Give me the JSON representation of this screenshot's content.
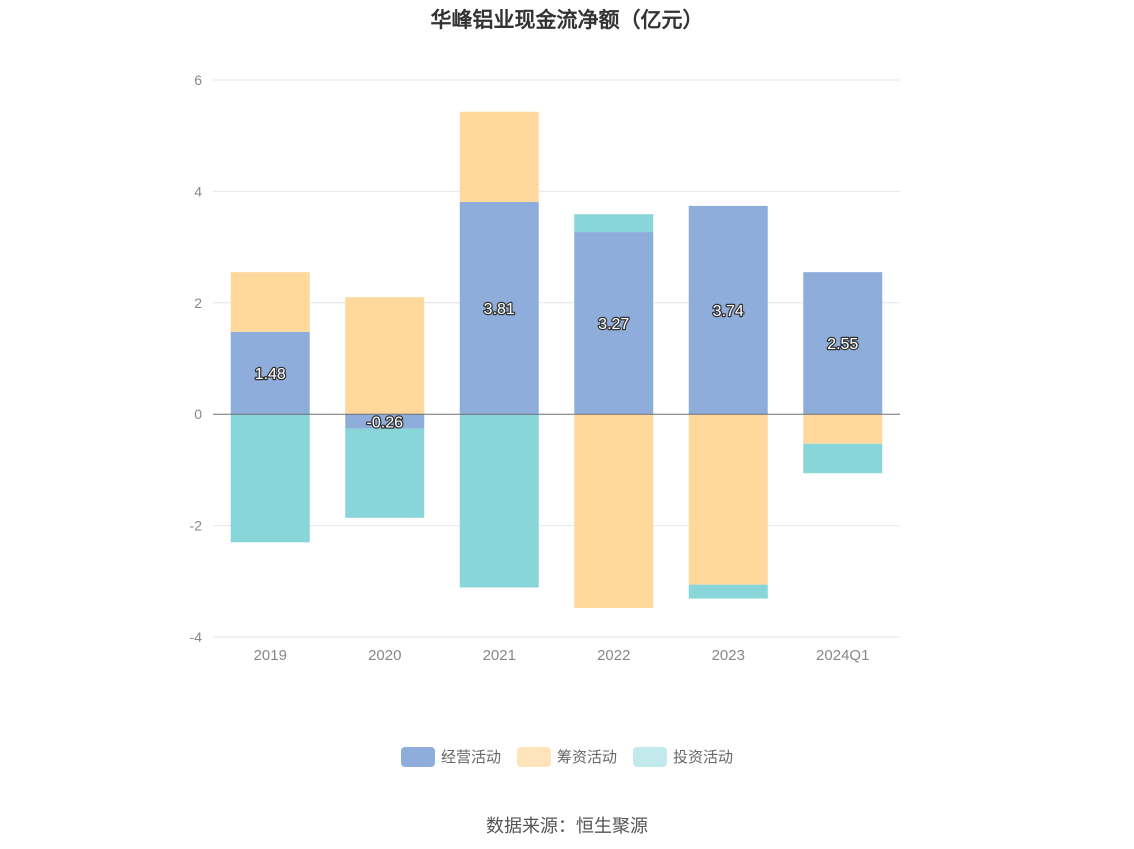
{
  "chart_data": {
    "type": "bar",
    "stacked": true,
    "title": "华峰铝业现金流净额（亿元）",
    "categories": [
      "2019",
      "2020",
      "2021",
      "2022",
      "2023",
      "2024Q1"
    ],
    "ylim": [
      -4,
      6
    ],
    "yticks": [
      "-4",
      "-2",
      "0",
      "2",
      "4",
      "6"
    ],
    "grid": true,
    "legend_position": "bottom",
    "series": [
      {
        "name": "经营活动",
        "color": "#8eaddb",
        "values": [
          1.48,
          -0.26,
          3.81,
          3.27,
          3.74,
          2.55
        ],
        "labels": [
          "1.48",
          "-0.26",
          "3.81",
          "3.27",
          "3.74",
          "2.55"
        ]
      },
      {
        "name": "筹资活动",
        "color": "#ffd99c",
        "values": [
          1.07,
          2.1,
          1.62,
          -3.48,
          -3.06,
          -0.53
        ]
      },
      {
        "name": "投资活动",
        "color": "#88d6d9",
        "values": [
          -2.3,
          -1.6,
          -3.11,
          0.32,
          -0.25,
          -0.53
        ]
      }
    ]
  },
  "legend": {
    "items": [
      {
        "label": "经营活动",
        "color": "#8eaddb"
      },
      {
        "label": "筹资活动",
        "color": "#ffe4bb"
      },
      {
        "label": "投资活动",
        "color": "#c2eaec"
      }
    ]
  },
  "source": "数据来源：恒生聚源"
}
